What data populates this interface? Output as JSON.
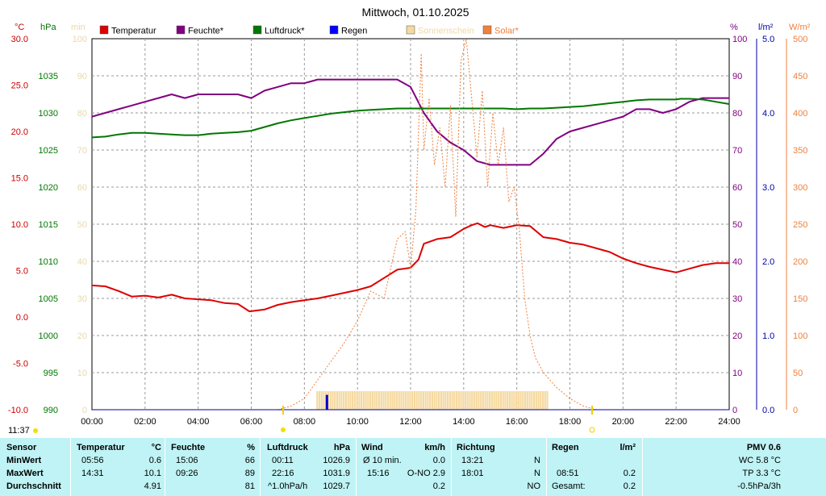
{
  "chart_data": {
    "type": "line",
    "title": "Mittwoch, 01.10.2025",
    "legend": {
      "placement": "top",
      "entries": [
        {
          "name": "Temperatur",
          "color": "#dd0000"
        },
        {
          "name": "Feuchte*",
          "color": "#800080"
        },
        {
          "name": "Luftdruck*",
          "color": "#007700"
        },
        {
          "name": "Regen",
          "color": "#0000ff"
        },
        {
          "name": "Sonnenschein",
          "color": "#f5d9a0"
        },
        {
          "name": "Solar*",
          "color": "#f0803c"
        }
      ]
    },
    "axes": {
      "temp": {
        "unit": "°C",
        "ticks": [
          "30.0",
          "25.0",
          "20.0",
          "15.0",
          "10.0",
          "5.0",
          "0.0",
          "-5.0",
          "-10.0"
        ],
        "ylim": [
          -10,
          30
        ],
        "color": "#cc0000"
      },
      "pressure": {
        "unit": "hPa",
        "ticks": [
          "1035",
          "1030",
          "1025",
          "1020",
          "1015",
          "1010",
          "1005",
          "1000",
          "995",
          "990"
        ],
        "ylim": [
          990,
          1040
        ],
        "color": "#007700"
      },
      "sun_minutes": {
        "unit": "min",
        "ticks": [
          "100",
          "90",
          "80",
          "70",
          "60",
          "50",
          "40",
          "30",
          "20",
          "10",
          "0"
        ],
        "ylim": [
          0,
          100
        ],
        "color": "#e8d8a8"
      },
      "humidity": {
        "unit": "%",
        "ticks": [
          "100",
          "90",
          "80",
          "70",
          "60",
          "50",
          "40",
          "30",
          "20",
          "10",
          "0"
        ],
        "ylim": [
          0,
          100
        ],
        "color": "#800080"
      },
      "rain": {
        "unit": "l/m²",
        "ticks": [
          "5.0",
          "4.0",
          "3.0",
          "2.0",
          "1.0",
          "0.0"
        ],
        "ylim": [
          0,
          5
        ],
        "color": "#0000aa"
      },
      "solar": {
        "unit": "W/m²",
        "ticks": [
          "500",
          "450",
          "400",
          "350",
          "300",
          "250",
          "200",
          "150",
          "100",
          "50",
          "0"
        ],
        "ylim": [
          0,
          500
        ],
        "color": "#f0803c"
      },
      "x": {
        "ticks": [
          "00:00",
          "02:00",
          "04:00",
          "06:00",
          "08:00",
          "10:00",
          "12:00",
          "14:00",
          "16:00",
          "18:00",
          "20:00",
          "22:00",
          "24:00"
        ],
        "xlim": [
          0,
          24
        ]
      }
    },
    "grid": true,
    "sunrise_label": "11:37",
    "series": [
      {
        "name": "Temperatur",
        "axis": "temp",
        "color": "#dd0000",
        "x": [
          0,
          0.5,
          1,
          1.5,
          2,
          2.5,
          3,
          3.5,
          4,
          4.5,
          5,
          5.5,
          5.93,
          6.5,
          7,
          7.5,
          8,
          8.5,
          9,
          9.5,
          10,
          10.5,
          11,
          11.5,
          12,
          12.3,
          12.5,
          13,
          13.5,
          14,
          14.3,
          14.52,
          14.8,
          15,
          15.5,
          16,
          16.5,
          17,
          17.5,
          18,
          18.5,
          19,
          19.5,
          20,
          20.5,
          21,
          21.5,
          22,
          22.5,
          23,
          23.5,
          24
        ],
        "y": [
          3.4,
          3.3,
          2.8,
          2.2,
          2.3,
          2.1,
          2.4,
          2.0,
          1.9,
          1.8,
          1.5,
          1.4,
          0.6,
          0.8,
          1.3,
          1.6,
          1.8,
          2.0,
          2.3,
          2.6,
          2.9,
          3.3,
          4.2,
          5.1,
          5.3,
          6.2,
          7.9,
          8.4,
          8.6,
          9.5,
          9.9,
          10.1,
          9.7,
          9.9,
          9.6,
          9.9,
          9.8,
          8.6,
          8.4,
          8.0,
          7.8,
          7.4,
          7.0,
          6.3,
          5.8,
          5.4,
          5.1,
          4.8,
          5.2,
          5.6,
          5.8,
          5.8
        ]
      },
      {
        "name": "Feuchte*",
        "axis": "humidity",
        "color": "#800080",
        "x": [
          0,
          0.5,
          1,
          1.5,
          2,
          2.5,
          3,
          3.5,
          4,
          4.5,
          5,
          5.5,
          6,
          6.5,
          7,
          7.5,
          8,
          8.5,
          9,
          9.43,
          10,
          10.5,
          11,
          11.5,
          12,
          12.5,
          13,
          13.5,
          14,
          14.5,
          15,
          15.1,
          15.5,
          16,
          16.5,
          17,
          17.5,
          18,
          18.5,
          19,
          19.5,
          20,
          20.5,
          21,
          21.5,
          22,
          22.5,
          23,
          23.5,
          24
        ],
        "y": [
          79,
          80,
          81,
          82,
          83,
          84,
          85,
          84,
          85,
          85,
          85,
          85,
          84,
          86,
          87,
          88,
          88,
          89,
          89,
          89,
          89,
          89,
          89,
          89,
          87,
          80,
          75,
          72,
          70,
          67,
          66,
          66,
          66,
          66,
          66,
          69,
          73,
          75,
          76,
          77,
          78,
          79,
          81,
          81,
          80,
          81,
          83,
          84,
          84,
          84
        ]
      },
      {
        "name": "Luftdruck*",
        "axis": "pressure",
        "color": "#007700",
        "x": [
          0,
          0.5,
          1,
          1.5,
          2,
          2.5,
          3,
          3.5,
          4,
          4.5,
          5,
          5.5,
          6,
          6.5,
          7,
          7.5,
          8,
          8.5,
          9,
          9.5,
          10,
          10.5,
          11,
          11.5,
          12,
          12.5,
          13,
          13.5,
          14,
          14.5,
          15,
          15.5,
          16,
          16.5,
          17,
          17.5,
          18,
          18.5,
          19,
          19.5,
          20,
          20.5,
          21,
          21.5,
          22,
          22.16,
          22.5,
          23,
          23.5,
          24
        ],
        "y": [
          1026.7,
          1026.8,
          1027.1,
          1027.3,
          1027.3,
          1027.2,
          1027.1,
          1027.0,
          1027.0,
          1027.2,
          1027.3,
          1027.4,
          1027.6,
          1028.1,
          1028.6,
          1029.0,
          1029.3,
          1029.6,
          1029.9,
          1030.1,
          1030.3,
          1030.4,
          1030.5,
          1030.6,
          1030.6,
          1030.6,
          1030.6,
          1030.6,
          1030.6,
          1030.6,
          1030.6,
          1030.6,
          1030.5,
          1030.6,
          1030.6,
          1030.7,
          1030.8,
          1030.9,
          1031.1,
          1031.3,
          1031.5,
          1031.7,
          1031.8,
          1031.8,
          1031.8,
          1031.9,
          1031.9,
          1031.8,
          1031.5,
          1031.2
        ]
      },
      {
        "name": "Solar*",
        "axis": "solar",
        "color": "#f0803c",
        "style": "dotted",
        "x": [
          7,
          7.5,
          8,
          8.5,
          9,
          9.5,
          10,
          10.5,
          11,
          11.5,
          11.8,
          12,
          12.2,
          12.4,
          12.5,
          12.7,
          12.9,
          13.1,
          13.3,
          13.5,
          13.7,
          13.9,
          14.1,
          14.3,
          14.5,
          14.7,
          14.9,
          15.1,
          15.3,
          15.5,
          15.7,
          15.9,
          16.1,
          16.3,
          16.5,
          16.7,
          17,
          17.5,
          18,
          18.5,
          19
        ],
        "y": [
          0,
          5,
          15,
          40,
          65,
          90,
          120,
          160,
          150,
          230,
          240,
          190,
          270,
          480,
          350,
          420,
          330,
          380,
          300,
          410,
          260,
          470,
          500,
          420,
          340,
          430,
          300,
          400,
          330,
          380,
          280,
          300,
          240,
          150,
          100,
          70,
          50,
          30,
          15,
          5,
          0
        ]
      }
    ],
    "sunshine_bar": {
      "x_start": 8.45,
      "x_end": 17.15,
      "minutes": 5
    },
    "rain_marks": [
      {
        "x": 8.85,
        "value": 0.2
      }
    ]
  },
  "table": {
    "headers": {
      "sensor": "Sensor",
      "temperatur": "Temperatur",
      "temperatur_unit": "°C",
      "feuchte": "Feuchte",
      "feuchte_unit": "%",
      "luftdruck": "Luftdruck",
      "luftdruck_unit": "hPa",
      "wind": "Wind",
      "wind_unit": "km/h",
      "richtung": "Richtung",
      "regen": "Regen",
      "regen_unit": "l/m²",
      "pmv": "PMV 0.6"
    },
    "rows": [
      {
        "label": "MinWert",
        "temp_time": "05:56",
        "temp_val": "0.6",
        "hum_time": "15:06",
        "hum_val": "66",
        "press_time": "00:11",
        "press_val": "1026.9",
        "wind_label": "Ø 10 min.",
        "wind_val": "0.0",
        "dir_time": "13:21",
        "dir_val": "N",
        "rain_time": "",
        "rain_val": "",
        "pmv_val": "WC 5.8 °C"
      },
      {
        "label": "MaxWert",
        "temp_time": "14:31",
        "temp_val": "10.1",
        "hum_time": "09:26",
        "hum_val": "89",
        "press_time": "22:16",
        "press_val": "1031.9",
        "wind_label": "15:16",
        "wind_val": "O-NO 2.9",
        "dir_time": "18:01",
        "dir_val": "N",
        "rain_time": "08:51",
        "rain_val": "0.2",
        "pmv_val": "TP 3.3 °C"
      },
      {
        "label": "Durchschnitt",
        "temp_time": "",
        "temp_val": "4.91",
        "hum_time": "",
        "hum_val": "81",
        "press_time": "^1.0hPa/h",
        "press_val": "1029.7",
        "wind_label": "",
        "wind_val": "0.2",
        "dir_time": "",
        "dir_val": "NO",
        "rain_time": "Gesamt:",
        "rain_val": "0.2",
        "pmv_val": "-0.5hPa/3h"
      }
    ]
  }
}
